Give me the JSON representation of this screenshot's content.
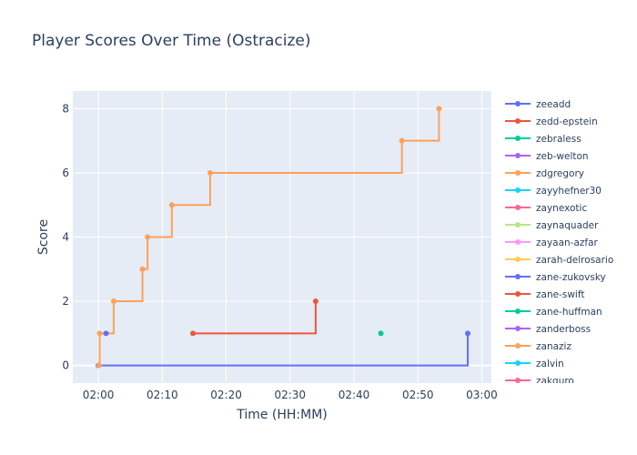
{
  "chart_data": {
    "type": "line",
    "title": "Player Scores Over Time (Ostracize)",
    "xlabel": "Time (HH:MM)",
    "ylabel": "Score",
    "x_unit": "minutes after 02:00",
    "xlim": [
      -4,
      61.5
    ],
    "ylim": [
      -0.55,
      8.55
    ],
    "x_ticks": [
      {
        "value": 0,
        "label": "02:00"
      },
      {
        "value": 10,
        "label": "02:10"
      },
      {
        "value": 20,
        "label": "02:20"
      },
      {
        "value": 30,
        "label": "02:30"
      },
      {
        "value": 40,
        "label": "02:40"
      },
      {
        "value": 50,
        "label": "02:50"
      },
      {
        "value": 60,
        "label": "03:00"
      }
    ],
    "y_ticks": [
      0,
      2,
      4,
      6,
      8
    ],
    "line_shape": "step-after",
    "grid": true,
    "legend_position": "right",
    "background_color": "#e5ecf6",
    "series": [
      {
        "name": "zeeadd",
        "color": "#636efa",
        "points": [
          [
            0,
            0
          ],
          [
            57.8,
            1
          ]
        ]
      },
      {
        "name": "zedd-epstein",
        "color": "#EF553B",
        "points": [
          [
            14.8,
            1
          ],
          [
            34,
            2
          ]
        ]
      },
      {
        "name": "zebraless",
        "color": "#00cc96",
        "points": [
          [
            44.2,
            1
          ]
        ]
      },
      {
        "name": "zeb-welton",
        "color": "#ab63fa",
        "points": []
      },
      {
        "name": "zdgregory",
        "color": "#FFA15A",
        "points": [
          [
            0.1,
            0
          ],
          [
            0.2,
            1
          ],
          [
            2.4,
            2
          ],
          [
            6.9,
            3
          ],
          [
            7.7,
            4
          ],
          [
            11.5,
            5
          ],
          [
            17.5,
            6
          ],
          [
            47.5,
            7
          ],
          [
            53.3,
            8
          ]
        ]
      },
      {
        "name": "zayyhefner30",
        "color": "#19d3f3",
        "points": []
      },
      {
        "name": "zaynexotic",
        "color": "#FF6692",
        "points": []
      },
      {
        "name": "zaynaquader",
        "color": "#B6E880",
        "points": []
      },
      {
        "name": "zayaan-azfar",
        "color": "#FF97FF",
        "points": []
      },
      {
        "name": "zarah-delrosario",
        "color": "#FECB52",
        "points": []
      },
      {
        "name": "zane-zukovsky",
        "color": "#636efa",
        "points": [
          [
            1.2,
            1
          ]
        ]
      },
      {
        "name": "zane-swift",
        "color": "#EF553B",
        "points": []
      },
      {
        "name": "zane-huffman",
        "color": "#00cc96",
        "points": []
      },
      {
        "name": "zanderboss",
        "color": "#ab63fa",
        "points": []
      },
      {
        "name": "zanaziz",
        "color": "#FFA15A",
        "points": []
      },
      {
        "name": "zalvin",
        "color": "#19d3f3",
        "points": []
      },
      {
        "name": "zakguro",
        "color": "#FF6692",
        "points": []
      }
    ]
  }
}
